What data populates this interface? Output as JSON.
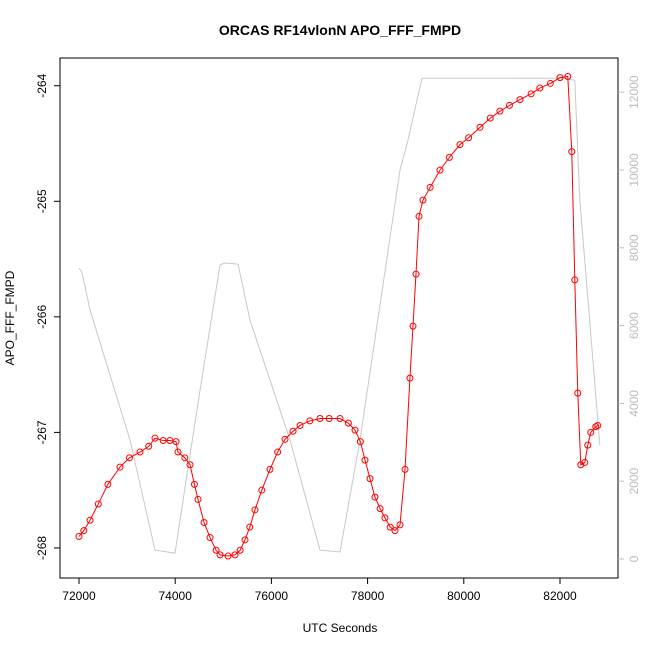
{
  "chart_data": {
    "type": "line",
    "title": "ORCAS RF14vlonN APO_FFF_FMPD",
    "x_label": "UTC Seconds",
    "y_label": "APO_FFF_FMPD",
    "xlim": [
      71605,
      83206
    ],
    "xticks": [
      72000,
      74000,
      76000,
      78000,
      80000,
      82000
    ],
    "ylim": [
      -268.26,
      -263.76
    ],
    "yticks": [
      -268,
      -267,
      -266,
      -265,
      -264
    ],
    "y2lim": [
      -488,
      12879
    ],
    "y2ticks": [
      0,
      2000,
      4000,
      6000,
      8000,
      10000,
      12000
    ],
    "series": [
      {
        "color": "#ff0000",
        "markers": true,
        "x": [
          72000,
          72100,
          72229,
          72400,
          72600,
          72852,
          73050,
          73268,
          73450,
          73580,
          73750,
          73892,
          74017,
          74058,
          74200,
          74308,
          74400,
          74474,
          74600,
          74724,
          74850,
          74932,
          75100,
          75243,
          75350,
          75451,
          75550,
          75659,
          75800,
          75971,
          76130,
          76283,
          76450,
          76595,
          76800,
          77010,
          77200,
          77426,
          77600,
          77738,
          77850,
          77946,
          78050,
          78153,
          78260,
          78361,
          78470,
          78570,
          78674,
          78778,
          78880,
          78944,
          79006,
          79069,
          79151,
          79300,
          79505,
          79700,
          79920,
          80100,
          80337,
          80550,
          80752,
          80950,
          81168,
          81400,
          81580,
          81800,
          82000,
          82162,
          82245,
          82308,
          82370,
          82432,
          82516,
          82578,
          82640,
          82744,
          82786
        ],
        "values": [
          -267.9,
          -267.85,
          -267.76,
          -267.62,
          -267.45,
          -267.3,
          -267.22,
          -267.17,
          -267.12,
          -267.05,
          -267.07,
          -267.07,
          -267.08,
          -267.17,
          -267.22,
          -267.28,
          -267.45,
          -267.58,
          -267.78,
          -267.91,
          -268.02,
          -268.06,
          -268.07,
          -268.06,
          -268.02,
          -267.93,
          -267.82,
          -267.67,
          -267.5,
          -267.32,
          -267.17,
          -267.06,
          -266.99,
          -266.94,
          -266.9,
          -266.88,
          -266.88,
          -266.88,
          -266.92,
          -266.98,
          -267.08,
          -267.24,
          -267.4,
          -267.56,
          -267.66,
          -267.74,
          -267.82,
          -267.85,
          -267.8,
          -267.32,
          -266.53,
          -266.08,
          -265.63,
          -265.13,
          -264.99,
          -264.88,
          -264.73,
          -264.62,
          -264.51,
          -264.45,
          -264.36,
          -264.28,
          -264.22,
          -264.17,
          -264.12,
          -264.07,
          -264.02,
          -263.98,
          -263.93,
          -263.92,
          -264.57,
          -265.68,
          -266.66,
          -267.28,
          -267.26,
          -267.11,
          -267.0,
          -266.95,
          -266.94
        ]
      },
      {
        "color": "#c8c8c8",
        "axis": "y2",
        "markers": false,
        "x": [
          72000,
          72060,
          72229,
          73060,
          73580,
          73996,
          74100,
          74516,
          74932,
          75036,
          75306,
          75555,
          76387,
          77010,
          77426,
          77842,
          78674,
          78840,
          79131,
          82000,
          82308,
          82412,
          82786,
          82827
        ],
        "values": [
          7480,
          7380,
          6400,
          3060,
          230,
          150,
          1000,
          4340,
          7560,
          7610,
          7580,
          6140,
          3060,
          230,
          180,
          3060,
          10000,
          10770,
          12360,
          12360,
          12310,
          9230,
          3570,
          2930
        ]
      }
    ]
  }
}
